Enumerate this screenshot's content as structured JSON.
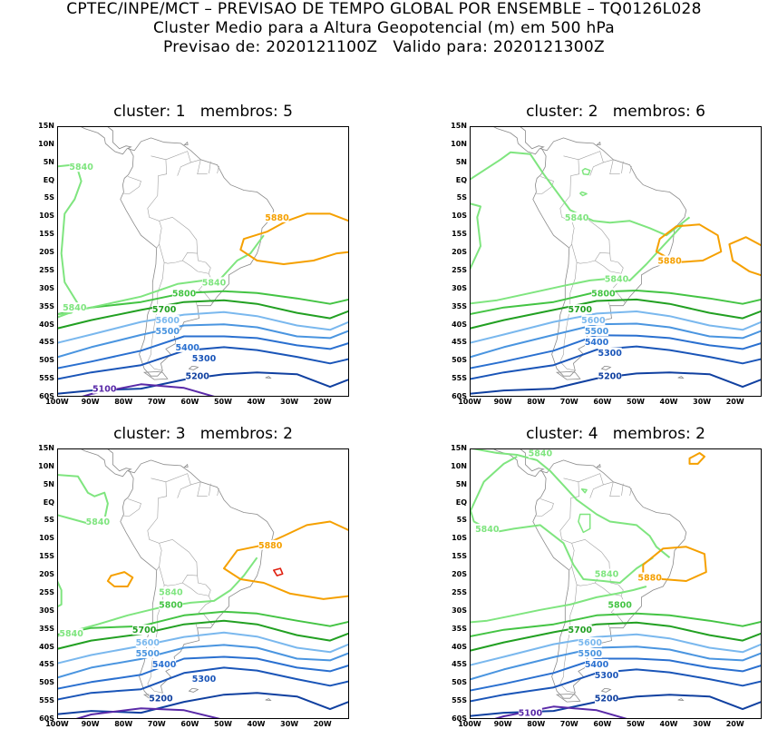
{
  "header": {
    "line1": "CPTEC/INPE/MCT – PREVISAO DE TEMPO GLOBAL POR ENSEMBLE – TQ0126L028",
    "line2": "Cluster Medio para a Altura Geopotencial (m) em 500 hPa",
    "line3": "Previsao de: 2020121100Z   Valido para: 2020121300Z"
  },
  "axes": {
    "lat_labels": [
      "15N",
      "10N",
      "5N",
      "EQ",
      "5S",
      "10S",
      "15S",
      "20S",
      "25S",
      "30S",
      "35S",
      "40S",
      "45S",
      "50S",
      "55S",
      "60S"
    ],
    "lon_labels": [
      "100W",
      "90W",
      "80W",
      "70W",
      "60W",
      "50W",
      "40W",
      "30W",
      "20W"
    ]
  },
  "contour_colors": {
    "5880": "#f5a000",
    "5840": "#7fe57f",
    "5800": "#44c444",
    "5700": "#22a022",
    "5600": "#7ab8ee",
    "5500": "#4a95e0",
    "5400": "#2a70d0",
    "5300": "#1a55b8",
    "5200": "#1040a0",
    "5100": "#5a2aa8",
    "hot": "#e02010"
  },
  "panels": [
    {
      "title": "cluster: 1   membros: 5",
      "labels": [
        {
          "text": "5840",
          "lon": -93,
          "lat": 4
        },
        {
          "text": "5880",
          "lon": -34,
          "lat": -10
        },
        {
          "text": "5840",
          "lon": -53,
          "lat": -28
        },
        {
          "text": "5840",
          "lon": -95,
          "lat": -35
        },
        {
          "text": "5800",
          "lon": -62,
          "lat": -31
        },
        {
          "text": "5700",
          "lon": -68,
          "lat": -35.5
        },
        {
          "text": "5600",
          "lon": -67,
          "lat": -38.5
        },
        {
          "text": "5500",
          "lon": -67,
          "lat": -41.5
        },
        {
          "text": "5400",
          "lon": -61,
          "lat": -46
        },
        {
          "text": "5300",
          "lon": -56,
          "lat": -49
        },
        {
          "text": "5200",
          "lon": -58,
          "lat": -54
        },
        {
          "text": "5100",
          "lon": -86,
          "lat": -57.5
        }
      ]
    },
    {
      "title": "cluster: 2   membros: 6",
      "labels": [
        {
          "text": "5840",
          "lon": -68,
          "lat": -10
        },
        {
          "text": "5880",
          "lon": -40,
          "lat": -22
        },
        {
          "text": "5840",
          "lon": -56,
          "lat": -27
        },
        {
          "text": "5800",
          "lon": -60,
          "lat": -31
        },
        {
          "text": "5700",
          "lon": -67,
          "lat": -35.5
        },
        {
          "text": "5600",
          "lon": -63,
          "lat": -38.5
        },
        {
          "text": "5500",
          "lon": -62,
          "lat": -41.5
        },
        {
          "text": "5400",
          "lon": -62,
          "lat": -44.5
        },
        {
          "text": "5300",
          "lon": -58,
          "lat": -47.5
        },
        {
          "text": "5200",
          "lon": -58,
          "lat": -54
        }
      ]
    },
    {
      "title": "cluster: 3   membros: 2",
      "labels": [
        {
          "text": "5840",
          "lon": -88,
          "lat": -5
        },
        {
          "text": "5880",
          "lon": -36,
          "lat": -11.5
        },
        {
          "text": "5840",
          "lon": -66,
          "lat": -24.5
        },
        {
          "text": "5800",
          "lon": -66,
          "lat": -28
        },
        {
          "text": "5840",
          "lon": -96,
          "lat": -36
        },
        {
          "text": "5700",
          "lon": -74,
          "lat": -35
        },
        {
          "text": "5600",
          "lon": -73,
          "lat": -38.5
        },
        {
          "text": "5500",
          "lon": -73,
          "lat": -41.5
        },
        {
          "text": "5400",
          "lon": -68,
          "lat": -44.5
        },
        {
          "text": "5300",
          "lon": -56,
          "lat": -48.5
        },
        {
          "text": "5200",
          "lon": -69,
          "lat": -54
        }
      ]
    },
    {
      "title": "cluster: 4   membros: 2",
      "labels": [
        {
          "text": "5840",
          "lon": -79,
          "lat": 14
        },
        {
          "text": "5840",
          "lon": -95,
          "lat": -7
        },
        {
          "text": "5880",
          "lon": -46,
          "lat": -20.5
        },
        {
          "text": "5840",
          "lon": -59,
          "lat": -19.5
        },
        {
          "text": "5800",
          "lon": -55,
          "lat": -28
        },
        {
          "text": "5700",
          "lon": -67,
          "lat": -35
        },
        {
          "text": "5600",
          "lon": -64,
          "lat": -38.5
        },
        {
          "text": "5500",
          "lon": -64,
          "lat": -41.5
        },
        {
          "text": "5400",
          "lon": -62,
          "lat": -44.5
        },
        {
          "text": "5300",
          "lon": -59,
          "lat": -47.5
        },
        {
          "text": "5200",
          "lon": -59,
          "lat": -54
        },
        {
          "text": "5100",
          "lon": -82,
          "lat": -58
        }
      ]
    }
  ]
}
